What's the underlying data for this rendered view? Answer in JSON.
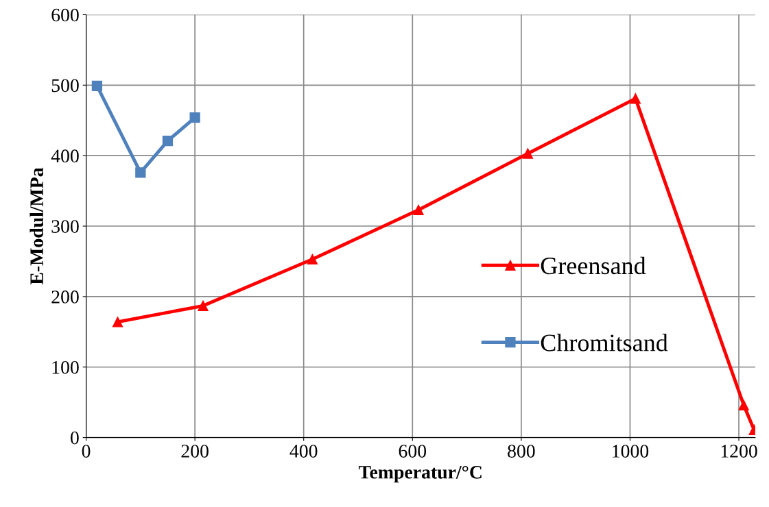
{
  "chart_data": {
    "type": "line",
    "xlabel": "Temperatur/°C",
    "ylabel": "E-Modul/MPa",
    "xlim": [
      0,
      1230
    ],
    "xticks": [
      0,
      200,
      400,
      600,
      800,
      1000,
      1200
    ],
    "ylim": [
      0,
      600
    ],
    "yticks": [
      0,
      100,
      200,
      300,
      400,
      500,
      600
    ],
    "grid": true,
    "legend": "right",
    "line_style": "solid",
    "series": [
      {
        "name": "Greensand",
        "color": "#ff0000",
        "marker": "triangle",
        "x": [
          58,
          215,
          416,
          611,
          812,
          1010,
          1209,
          1228
        ],
        "values": [
          164,
          187,
          253,
          323,
          403,
          481,
          46,
          11
        ]
      },
      {
        "name": "Chromitsand",
        "color": "#4f81bd",
        "marker": "square",
        "x": [
          20,
          100,
          150,
          200
        ],
        "values": [
          499,
          376,
          421,
          454
        ]
      }
    ]
  }
}
